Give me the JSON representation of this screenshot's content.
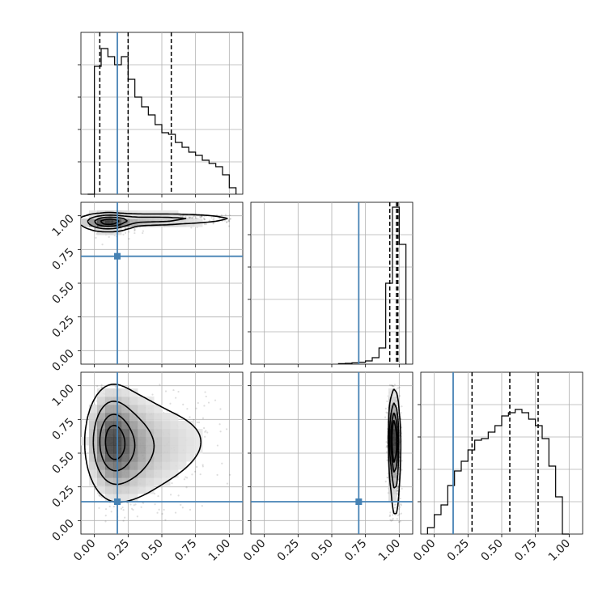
{
  "chart_data": {
    "type": "corner",
    "description_type": "histogram+2d-density",
    "n_params": 3,
    "param_range": [
      -0.1,
      1.1
    ],
    "truth_values": [
      0.17,
      0.7,
      0.14
    ],
    "truth_color": "#4682b4",
    "quantiles": [
      [
        0.04,
        0.25,
        0.57
      ],
      [
        0.93,
        0.98,
        0.99
      ],
      [
        0.28,
        0.56,
        0.77
      ]
    ],
    "tick_values": [
      0.0,
      0.25,
      0.5,
      0.75,
      1.0
    ],
    "tick_labels": [
      "0.00",
      "0.25",
      "0.50",
      "0.75",
      "1.00"
    ],
    "histograms": [
      {
        "param": 0,
        "type": "step",
        "bin_edges": [
          -0.05,
          0.0,
          0.05,
          0.1,
          0.15,
          0.2,
          0.25,
          0.3,
          0.35,
          0.4,
          0.45,
          0.5,
          0.55,
          0.6,
          0.65,
          0.7,
          0.75,
          0.8,
          0.85,
          0.9,
          0.95,
          1.0,
          1.05
        ],
        "counts": [
          0,
          79,
          90,
          85,
          80,
          85,
          71,
          60,
          54,
          49,
          43,
          38,
          37,
          32,
          29,
          26,
          24,
          21,
          19,
          17,
          12,
          4
        ],
        "ylim": [
          0,
          100
        ]
      },
      {
        "param": 1,
        "type": "step",
        "bin_edges": [
          0.55,
          0.6,
          0.65,
          0.7,
          0.75,
          0.8,
          0.85,
          0.9,
          0.95,
          1.0,
          1.05
        ],
        "counts": [
          0.3,
          0.5,
          0.8,
          1.2,
          2,
          4,
          10,
          50,
          97,
          74
        ],
        "ylim": [
          0,
          100
        ]
      },
      {
        "param": 2,
        "type": "step",
        "bin_edges": [
          -0.05,
          0.0,
          0.05,
          0.1,
          0.15,
          0.2,
          0.25,
          0.3,
          0.35,
          0.4,
          0.45,
          0.5,
          0.55,
          0.6,
          0.65,
          0.7,
          0.75,
          0.8,
          0.85,
          0.9,
          0.95,
          1.0
        ],
        "counts": [
          4,
          12,
          18,
          30,
          39,
          45,
          52,
          58,
          59,
          63,
          67,
          73,
          75,
          77,
          75,
          71,
          67,
          59,
          42,
          23,
          0
        ],
        "ylim": [
          0,
          100
        ]
      }
    ],
    "density_panels": [
      {
        "x_param": 0,
        "y_param": 1,
        "blobs": [
          {
            "cx": 0.1,
            "cy": 0.95,
            "sx": 0.1,
            "sy": 0.035,
            "w": 1.0
          },
          {
            "cx": 0.35,
            "cy": 0.97,
            "sx": 0.25,
            "sy": 0.025,
            "w": 0.45
          },
          {
            "cx": 0.7,
            "cy": 0.98,
            "sx": 0.25,
            "sy": 0.02,
            "w": 0.25
          }
        ]
      },
      {
        "x_param": 0,
        "y_param": 2,
        "blobs": [
          {
            "cx": 0.12,
            "cy": 0.6,
            "sx": 0.09,
            "sy": 0.2,
            "w": 1.0
          },
          {
            "cx": 0.22,
            "cy": 0.55,
            "sx": 0.14,
            "sy": 0.22,
            "w": 0.75
          },
          {
            "cx": 0.45,
            "cy": 0.55,
            "sx": 0.2,
            "sy": 0.22,
            "w": 0.35
          },
          {
            "cx": 0.8,
            "cy": 0.6,
            "sx": 0.2,
            "sy": 0.2,
            "w": 0.12
          }
        ]
      },
      {
        "x_param": 1,
        "y_param": 2,
        "blobs": [
          {
            "cx": 0.96,
            "cy": 0.62,
            "sx": 0.02,
            "sy": 0.16,
            "w": 1.0
          },
          {
            "cx": 0.97,
            "cy": 0.45,
            "sx": 0.02,
            "sy": 0.25,
            "w": 0.55
          }
        ]
      }
    ]
  }
}
